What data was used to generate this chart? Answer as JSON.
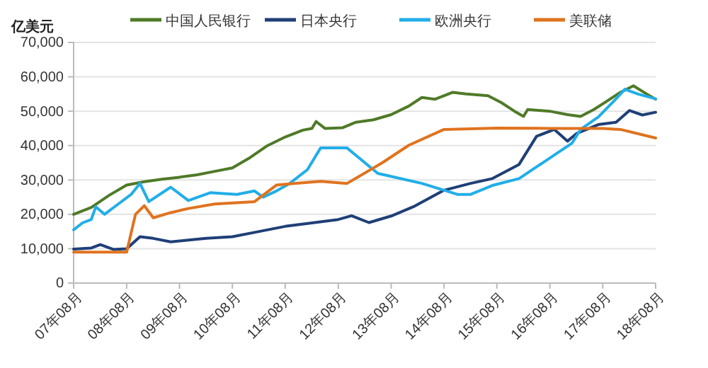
{
  "chart_data": {
    "type": "line",
    "ylabel": "亿美元",
    "xlim": [
      "2007-08",
      "2018-08"
    ],
    "xticks": [
      {
        "value": "2007-08",
        "label": "07年08月"
      },
      {
        "value": "2008-08",
        "label": "08年08月"
      },
      {
        "value": "2009-08",
        "label": "09年08月"
      },
      {
        "value": "2010-08",
        "label": "10年08月"
      },
      {
        "value": "2011-08",
        "label": "11年08月"
      },
      {
        "value": "2012-08",
        "label": "12年08月"
      },
      {
        "value": "2013-08",
        "label": "13年08月"
      },
      {
        "value": "2014-08",
        "label": "14年08月"
      },
      {
        "value": "2015-08",
        "label": "15年08月"
      },
      {
        "value": "2016-08",
        "label": "16年08月"
      },
      {
        "value": "2017-08",
        "label": "17年08月"
      },
      {
        "value": "2018-08",
        "label": "18年08月"
      }
    ],
    "ylim": [
      0,
      70000
    ],
    "yticks": [
      0,
      {
        "value": 10000,
        "label": "10,000"
      },
      {
        "value": 20000,
        "label": "20,000"
      },
      {
        "value": 30000,
        "label": "30,000"
      },
      {
        "value": 40000,
        "label": "40,000"
      },
      {
        "value": 50000,
        "label": "50,000"
      },
      {
        "value": 60000,
        "label": "60,000"
      },
      {
        "value": 70000,
        "label": "70,000"
      }
    ],
    "grid": "y",
    "legend": "top",
    "marker": "none",
    "line_style": "solid",
    "series": [
      {
        "name": "中国人民银行",
        "color": "#4f7a28",
        "x": [
          "2007-08",
          "2007-12",
          "2008-04",
          "2008-08",
          "2008-12",
          "2009-04",
          "2009-08",
          "2009-12",
          "2010-04",
          "2010-08",
          "2010-12",
          "2011-04",
          "2011-08",
          "2011-12",
          "2012-02",
          "2012-03",
          "2012-05",
          "2012-09",
          "2012-12",
          "2013-04",
          "2013-08",
          "2013-12",
          "2014-03",
          "2014-06",
          "2014-10",
          "2015-01",
          "2015-06",
          "2015-09",
          "2015-12",
          "2016-02",
          "2016-03",
          "2016-08",
          "2016-12",
          "2017-03",
          "2017-06",
          "2017-09",
          "2017-12",
          "2018-03",
          "2018-06",
          "2018-08"
        ],
        "values": [
          20000,
          22000,
          25500,
          28500,
          29500,
          30200,
          30800,
          31500,
          32500,
          33500,
          36500,
          40000,
          42500,
          44500,
          45000,
          47000,
          45000,
          45200,
          46800,
          47500,
          49000,
          51500,
          54000,
          53500,
          55500,
          55000,
          54500,
          52500,
          50000,
          48500,
          50500,
          50000,
          49000,
          48500,
          50500,
          53000,
          55500,
          57400,
          55000,
          53500
        ]
      },
      {
        "name": "日本央行",
        "color": "#1f3f77",
        "x": [
          "2007-08",
          "2007-12",
          "2008-02",
          "2008-05",
          "2008-08",
          "2008-11",
          "2009-02",
          "2009-06",
          "2009-10",
          "2010-02",
          "2010-08",
          "2011-02",
          "2011-08",
          "2012-02",
          "2012-08",
          "2012-11",
          "2013-03",
          "2013-08",
          "2014-01",
          "2014-08",
          "2015-02",
          "2015-07",
          "2016-01",
          "2016-05",
          "2016-09",
          "2016-12",
          "2017-02",
          "2017-07",
          "2017-11",
          "2018-02",
          "2018-05",
          "2018-08"
        ],
        "values": [
          9900,
          10200,
          11200,
          9800,
          10000,
          13500,
          13000,
          12000,
          12500,
          13000,
          13500,
          15000,
          16500,
          17500,
          18500,
          19600,
          17600,
          19500,
          22200,
          27000,
          29000,
          30400,
          34500,
          42700,
          44700,
          41300,
          43500,
          46100,
          46800,
          50200,
          48900,
          49700
        ]
      },
      {
        "name": "欧洲央行",
        "color": "#21aee8",
        "x": [
          "2007-08",
          "2007-10",
          "2007-12",
          "2008-01",
          "2008-03",
          "2008-06",
          "2008-09",
          "2008-11",
          "2009-01",
          "2009-06",
          "2009-10",
          "2010-03",
          "2010-09",
          "2011-01",
          "2011-03",
          "2011-06",
          "2011-09",
          "2012-01",
          "2012-04",
          "2012-10",
          "2013-05",
          "2014-03",
          "2014-11",
          "2015-02",
          "2015-07",
          "2016-01",
          "2016-10",
          "2017-01",
          "2017-03",
          "2017-07",
          "2017-11",
          "2018-01",
          "2018-04",
          "2018-08"
        ],
        "values": [
          15500,
          17500,
          18500,
          22200,
          20000,
          22900,
          25800,
          29000,
          23700,
          27900,
          24000,
          26300,
          25800,
          26800,
          25000,
          26800,
          29000,
          33000,
          39300,
          39300,
          31900,
          29000,
          25800,
          25800,
          28400,
          30400,
          38100,
          40700,
          44700,
          48300,
          53600,
          56400,
          55000,
          53600
        ]
      },
      {
        "name": "美联储",
        "color": "#e0731f",
        "x": [
          "2007-08",
          "2008-02",
          "2008-08",
          "2008-10",
          "2008-12",
          "2009-02",
          "2009-06",
          "2009-10",
          "2010-04",
          "2011-01",
          "2011-06",
          "2011-10",
          "2012-04",
          "2012-10",
          "2013-06",
          "2013-12",
          "2014-08",
          "2015-08",
          "2016-08",
          "2017-08",
          "2017-12",
          "2018-08"
        ],
        "values": [
          9000,
          9000,
          9000,
          20000,
          22500,
          19000,
          20500,
          21700,
          23000,
          23700,
          28500,
          29000,
          29600,
          29000,
          35000,
          40100,
          44700,
          45100,
          45000,
          45000,
          44700,
          42200
        ]
      }
    ]
  }
}
